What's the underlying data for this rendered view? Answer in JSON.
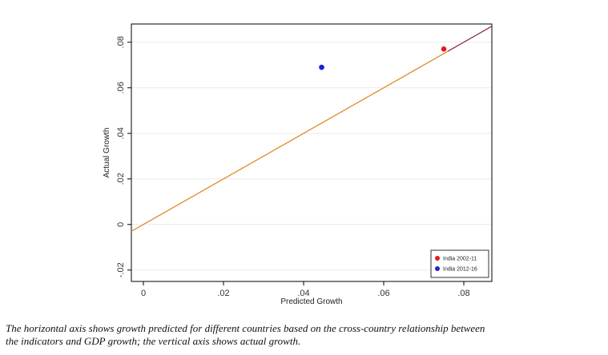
{
  "chart_data": {
    "type": "scatter",
    "title": "",
    "xlabel": "Predicted Growth",
    "ylabel": "Actual Growth",
    "xlim": [
      -0.003,
      0.087
    ],
    "ylim": [
      -0.025,
      0.088
    ],
    "x_ticks": [
      0,
      0.02,
      0.04,
      0.06,
      0.08
    ],
    "x_tick_labels": [
      "0",
      ".02",
      ".04",
      ".06",
      ".08"
    ],
    "y_ticks": [
      -0.02,
      0,
      0.02,
      0.04,
      0.06,
      0.08
    ],
    "y_tick_labels": [
      "-.02",
      "0",
      ".02",
      ".04",
      ".06",
      ".08"
    ],
    "grid": "horizontal",
    "series": [
      {
        "name": "India 2002-11",
        "color": "#e31a1c",
        "points": [
          {
            "x": 0.075,
            "y": 0.077
          }
        ]
      },
      {
        "name": "India 2012-16",
        "color": "#1f1fd6",
        "points": [
          {
            "x": 0.0445,
            "y": 0.069
          }
        ]
      }
    ],
    "reference_line": {
      "x": [
        -0.003,
        0.087
      ],
      "y": [
        -0.003,
        0.087
      ],
      "colors": [
        "#e08a2a",
        "#8a2f5a"
      ]
    },
    "legend": {
      "placement": "bottom-right"
    }
  },
  "caption": "The horizontal axis shows growth predicted for different countries based on the cross-country relationship between the indicators and GDP growth; the vertical axis shows actual growth."
}
